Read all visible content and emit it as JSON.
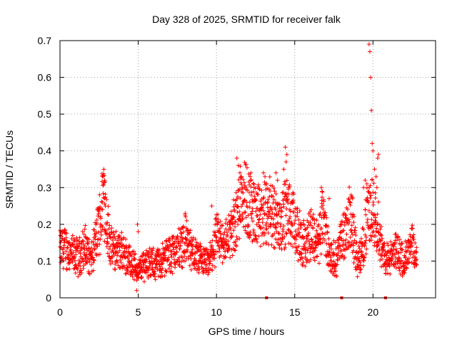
{
  "chart_data": {
    "type": "scatter",
    "title": "Day 328 of 2025, SRMTID for receiver falk",
    "xlabel": "GPS time / hours",
    "ylabel": "SRMTID / TECUs",
    "xlim": [
      0,
      24
    ],
    "ylim": [
      0,
      0.7
    ],
    "x_ticks": [
      0,
      5,
      10,
      15,
      20
    ],
    "y_ticks": [
      0,
      0.1,
      0.2,
      0.3,
      0.4,
      0.5,
      0.6,
      0.7
    ],
    "x_tick_labels": [
      "0",
      "5",
      "10",
      "15",
      "20"
    ],
    "y_tick_labels": [
      "0",
      "0.1",
      "0.2",
      "0.3",
      "0.4",
      "0.5",
      "0.6",
      "0.7"
    ],
    "grid": true,
    "legend": "none",
    "marker": "plus",
    "series_color": "#ff0000",
    "trend": [
      [
        0.0,
        0.13
      ],
      [
        0.3,
        0.14
      ],
      [
        0.7,
        0.12
      ],
      [
        1.2,
        0.11
      ],
      [
        1.6,
        0.14
      ],
      [
        2.0,
        0.1
      ],
      [
        2.4,
        0.18
      ],
      [
        2.6,
        0.22
      ],
      [
        2.8,
        0.3
      ],
      [
        3.0,
        0.2
      ],
      [
        3.3,
        0.13
      ],
      [
        3.8,
        0.13
      ],
      [
        4.3,
        0.11
      ],
      [
        4.7,
        0.09
      ],
      [
        5.0,
        0.07
      ],
      [
        5.5,
        0.1
      ],
      [
        6.0,
        0.09
      ],
      [
        6.5,
        0.1
      ],
      [
        7.0,
        0.12
      ],
      [
        7.5,
        0.13
      ],
      [
        8.0,
        0.16
      ],
      [
        8.5,
        0.12
      ],
      [
        9.0,
        0.1
      ],
      [
        9.5,
        0.09
      ],
      [
        10.0,
        0.16
      ],
      [
        10.5,
        0.15
      ],
      [
        11.0,
        0.18
      ],
      [
        11.3,
        0.22
      ],
      [
        11.6,
        0.3
      ],
      [
        12.0,
        0.26
      ],
      [
        12.5,
        0.22
      ],
      [
        13.0,
        0.22
      ],
      [
        13.5,
        0.24
      ],
      [
        14.0,
        0.2
      ],
      [
        14.5,
        0.24
      ],
      [
        15.0,
        0.2
      ],
      [
        15.5,
        0.14
      ],
      [
        16.0,
        0.18
      ],
      [
        16.5,
        0.15
      ],
      [
        16.8,
        0.22
      ],
      [
        17.2,
        0.12
      ],
      [
        17.6,
        0.1
      ],
      [
        18.0,
        0.16
      ],
      [
        18.3,
        0.2
      ],
      [
        18.6,
        0.22
      ],
      [
        19.0,
        0.1
      ],
      [
        19.3,
        0.12
      ],
      [
        19.6,
        0.22
      ],
      [
        20.0,
        0.24
      ],
      [
        20.3,
        0.2
      ],
      [
        20.6,
        0.12
      ],
      [
        21.0,
        0.1
      ],
      [
        21.5,
        0.13
      ],
      [
        22.0,
        0.1
      ],
      [
        22.5,
        0.14
      ],
      [
        22.8,
        0.1
      ]
    ],
    "points": [
      [
        2.75,
        0.33
      ],
      [
        2.8,
        0.35
      ],
      [
        2.85,
        0.32
      ],
      [
        2.7,
        0.26
      ],
      [
        2.9,
        0.25
      ],
      [
        2.6,
        0.22
      ],
      [
        4.9,
        0.02
      ],
      [
        4.95,
        0.2
      ],
      [
        5.0,
        0.18
      ],
      [
        8.0,
        0.23
      ],
      [
        8.1,
        0.21
      ],
      [
        9.7,
        0.25
      ],
      [
        11.3,
        0.38
      ],
      [
        11.4,
        0.36
      ],
      [
        11.5,
        0.34
      ],
      [
        11.6,
        0.33
      ],
      [
        11.8,
        0.3
      ],
      [
        12.2,
        0.34
      ],
      [
        12.4,
        0.3
      ],
      [
        13.0,
        0.34
      ],
      [
        13.1,
        0.33
      ],
      [
        13.2,
        0.31
      ],
      [
        13.8,
        0.34
      ],
      [
        13.9,
        0.32
      ],
      [
        14.4,
        0.41
      ],
      [
        14.5,
        0.39
      ],
      [
        14.45,
        0.37
      ],
      [
        14.3,
        0.35
      ],
      [
        14.6,
        0.3
      ],
      [
        16.7,
        0.3
      ],
      [
        16.75,
        0.29
      ],
      [
        17.2,
        0.27
      ],
      [
        18.6,
        0.28
      ],
      [
        18.7,
        0.27
      ],
      [
        19.4,
        0.3
      ],
      [
        19.5,
        0.32
      ],
      [
        19.75,
        0.69
      ],
      [
        19.8,
        0.67
      ],
      [
        19.85,
        0.6
      ],
      [
        19.9,
        0.51
      ],
      [
        19.95,
        0.42
      ],
      [
        20.0,
        0.4
      ],
      [
        20.1,
        0.35
      ],
      [
        20.2,
        0.33
      ],
      [
        20.25,
        0.3
      ],
      [
        20.3,
        0.38
      ],
      [
        20.35,
        0.39
      ]
    ],
    "zero_points": [
      13.2,
      18.0,
      20.8
    ]
  }
}
